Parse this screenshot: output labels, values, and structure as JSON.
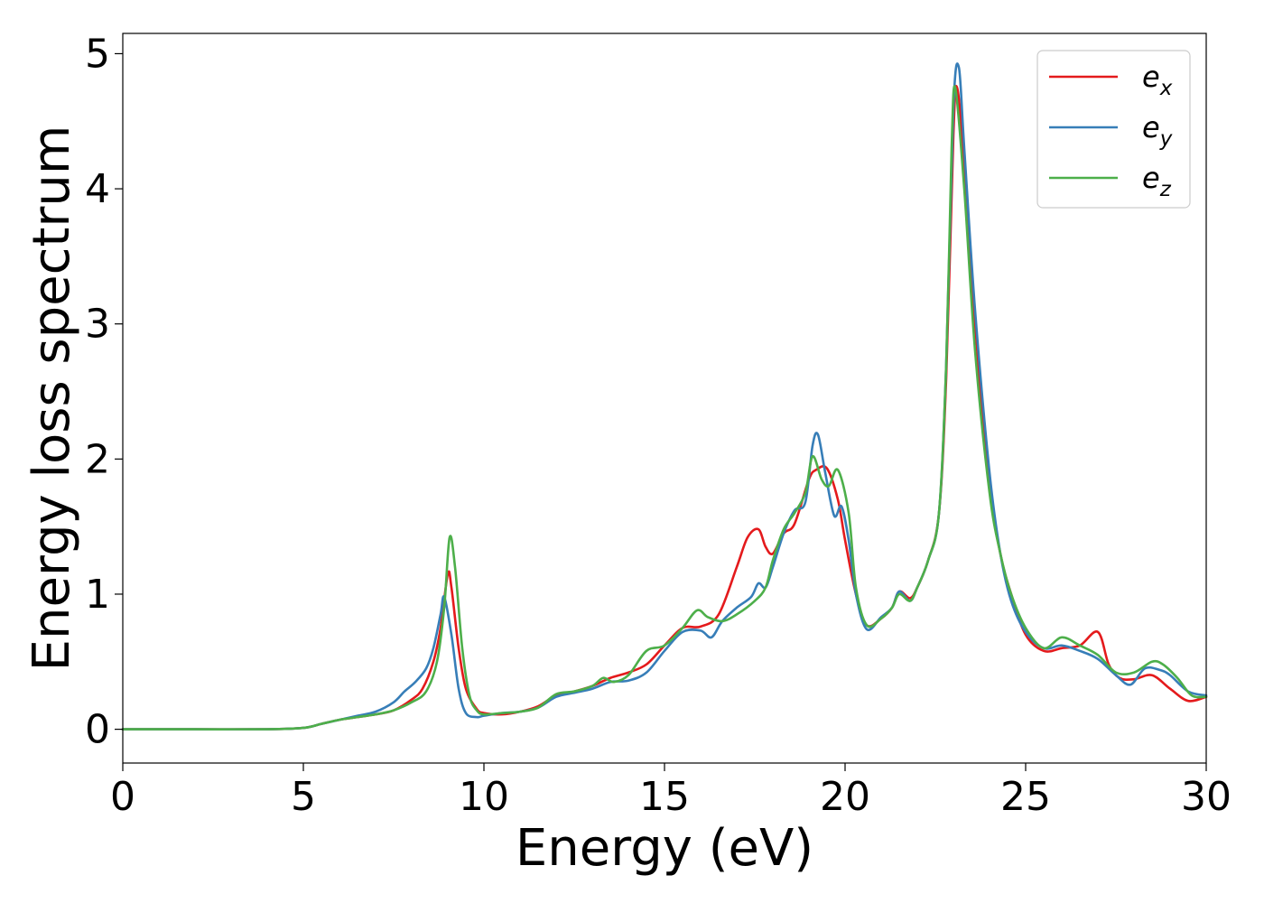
{
  "chart_data": {
    "type": "line",
    "xlabel": "Energy (eV)",
    "ylabel": "Energy loss spectrum",
    "xlim": [
      0,
      30
    ],
    "ylim": [
      -0.25,
      5.15
    ],
    "xticks": [
      0,
      5,
      10,
      15,
      20,
      25,
      30
    ],
    "xtick_labels": [
      "0",
      "5",
      "10",
      "15",
      "20",
      "25",
      "30"
    ],
    "yticks": [
      0,
      1,
      2,
      3,
      4,
      5
    ],
    "ytick_labels": [
      "0",
      "1",
      "2",
      "3",
      "4",
      "5"
    ],
    "grid": false,
    "legend_position": "top-right",
    "series": [
      {
        "name": "e",
        "subscript": "x",
        "color": "#e41a1c",
        "x": [
          0,
          2,
          4,
          5,
          5.5,
          6,
          6.5,
          7,
          7.5,
          8,
          8.3,
          8.6,
          8.8,
          9.0,
          9.1,
          9.3,
          9.5,
          9.8,
          10,
          10.5,
          11,
          11.5,
          12,
          12.5,
          13,
          13.5,
          14,
          14.5,
          15,
          15.5,
          16,
          16.5,
          17,
          17.3,
          17.6,
          17.8,
          18,
          18.3,
          18.6,
          19,
          19.2,
          19.5,
          19.8,
          20,
          20.3,
          20.6,
          21,
          21.3,
          21.5,
          21.8,
          22,
          22.3,
          22.6,
          22.8,
          23.0,
          23.1,
          23.3,
          23.6,
          24,
          24.3,
          24.6,
          25,
          25.5,
          26,
          26.5,
          27,
          27.3,
          27.6,
          28,
          28.5,
          29,
          29.5,
          30
        ],
        "y": [
          0,
          0,
          0,
          0.01,
          0.04,
          0.07,
          0.09,
          0.11,
          0.14,
          0.22,
          0.3,
          0.5,
          0.75,
          1.15,
          1.05,
          0.6,
          0.3,
          0.15,
          0.12,
          0.11,
          0.13,
          0.17,
          0.25,
          0.28,
          0.32,
          0.38,
          0.42,
          0.48,
          0.62,
          0.75,
          0.76,
          0.85,
          1.2,
          1.42,
          1.48,
          1.35,
          1.3,
          1.45,
          1.52,
          1.85,
          1.92,
          1.93,
          1.7,
          1.4,
          1.0,
          0.77,
          0.82,
          0.9,
          1.02,
          0.97,
          1.05,
          1.25,
          1.6,
          2.6,
          4.4,
          4.75,
          4.2,
          3.0,
          1.8,
          1.3,
          1.0,
          0.7,
          0.58,
          0.6,
          0.62,
          0.72,
          0.48,
          0.38,
          0.37,
          0.4,
          0.3,
          0.21,
          0.24
        ]
      },
      {
        "name": "e",
        "subscript": "y",
        "color": "#377eb8",
        "x": [
          0,
          2,
          4,
          5,
          5.5,
          6,
          6.5,
          7,
          7.5,
          7.8,
          8.1,
          8.4,
          8.6,
          8.8,
          8.9,
          9.1,
          9.3,
          9.5,
          9.8,
          10,
          10.5,
          11,
          11.5,
          12,
          12.5,
          13,
          13.5,
          14,
          14.5,
          15,
          15.5,
          16,
          16.3,
          16.6,
          17,
          17.4,
          17.6,
          17.8,
          18,
          18.3,
          18.6,
          18.9,
          19.1,
          19.25,
          19.45,
          19.7,
          19.9,
          20.1,
          20.3,
          20.6,
          21,
          21.3,
          21.5,
          21.8,
          22,
          22.3,
          22.6,
          22.8,
          23.0,
          23.15,
          23.3,
          23.6,
          24,
          24.3,
          24.6,
          25,
          25.5,
          26,
          26.5,
          27,
          27.5,
          27.9,
          28.3,
          28.7,
          29,
          29.5,
          30
        ],
        "y": [
          0,
          0,
          0,
          0.01,
          0.04,
          0.07,
          0.1,
          0.13,
          0.2,
          0.28,
          0.35,
          0.45,
          0.6,
          0.85,
          0.98,
          0.7,
          0.3,
          0.12,
          0.09,
          0.1,
          0.12,
          0.13,
          0.16,
          0.24,
          0.27,
          0.3,
          0.35,
          0.36,
          0.42,
          0.58,
          0.72,
          0.73,
          0.68,
          0.8,
          0.9,
          0.98,
          1.08,
          1.05,
          1.2,
          1.45,
          1.62,
          1.68,
          2.1,
          2.18,
          1.9,
          1.58,
          1.65,
          1.4,
          1.0,
          0.74,
          0.83,
          0.9,
          1.02,
          0.95,
          1.05,
          1.25,
          1.6,
          2.7,
          4.6,
          4.9,
          4.3,
          3.1,
          1.9,
          1.3,
          0.95,
          0.72,
          0.6,
          0.62,
          0.58,
          0.52,
          0.4,
          0.33,
          0.45,
          0.44,
          0.4,
          0.28,
          0.25
        ]
      },
      {
        "name": "e",
        "subscript": "z",
        "color": "#4daf4a",
        "x": [
          0,
          2,
          4,
          5,
          5.5,
          6,
          6.5,
          7,
          7.5,
          8,
          8.4,
          8.7,
          8.9,
          9.05,
          9.2,
          9.4,
          9.6,
          9.8,
          10,
          10.5,
          11,
          11.5,
          12,
          12.5,
          13,
          13.3,
          13.6,
          14,
          14.5,
          15,
          15.5,
          15.9,
          16.2,
          16.6,
          17,
          17.5,
          17.8,
          18,
          18.3,
          18.6,
          18.9,
          19.1,
          19.35,
          19.55,
          19.8,
          20.1,
          20.3,
          20.6,
          21,
          21.3,
          21.5,
          21.8,
          22,
          22.3,
          22.6,
          22.8,
          22.95,
          23.05,
          23.3,
          23.6,
          24,
          24.3,
          24.6,
          25,
          25.5,
          26,
          26.5,
          27,
          27.5,
          28,
          28.5,
          28.8,
          29.2,
          29.6,
          30
        ],
        "y": [
          0,
          0,
          0,
          0.01,
          0.04,
          0.07,
          0.09,
          0.11,
          0.14,
          0.2,
          0.28,
          0.5,
          0.9,
          1.42,
          1.2,
          0.6,
          0.25,
          0.14,
          0.11,
          0.12,
          0.13,
          0.16,
          0.26,
          0.28,
          0.32,
          0.38,
          0.35,
          0.4,
          0.58,
          0.62,
          0.75,
          0.88,
          0.83,
          0.8,
          0.85,
          0.95,
          1.05,
          1.25,
          1.48,
          1.6,
          1.75,
          2.02,
          1.85,
          1.8,
          1.92,
          1.6,
          1.05,
          0.77,
          0.82,
          0.9,
          1.0,
          0.95,
          1.05,
          1.25,
          1.6,
          2.7,
          4.3,
          4.75,
          4.0,
          2.8,
          1.75,
          1.3,
          1.0,
          0.75,
          0.6,
          0.68,
          0.62,
          0.55,
          0.42,
          0.42,
          0.5,
          0.48,
          0.38,
          0.25,
          0.24
        ]
      }
    ]
  }
}
